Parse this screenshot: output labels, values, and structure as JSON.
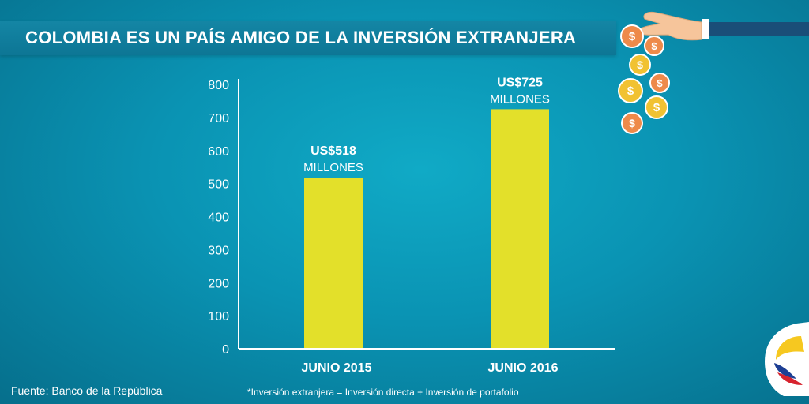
{
  "title": "COLOMBIA ES UN PAÍS AMIGO DE LA INVERSIÓN EXTRANJERA",
  "source": "Fuente: Banco de la República",
  "footnote": "*Inversión extranjera = Inversión directa + Inversión de portafolio",
  "colors": {
    "bar": "#e3e02a",
    "axis": "#ffffff",
    "coin": "#f1c232",
    "coin_alt": "#ee8a4a"
  },
  "icons": {
    "hand": "hand-dropping-coins-icon",
    "coin": "dollar-coin-icon",
    "logo": "colombia-flag-logo-icon"
  },
  "chart_data": {
    "type": "bar",
    "title": "COLOMBIA ES UN PAÍS AMIGO DE LA INVERSIÓN EXTRANJERA",
    "categories": [
      "JUNIO 2015",
      "JUNIO 2016"
    ],
    "values": [
      518,
      725
    ],
    "value_labels": [
      {
        "amount": "US$518",
        "unit": "MILLONES"
      },
      {
        "amount": "US$725",
        "unit": "MILLONES"
      }
    ],
    "yticks": [
      0,
      100,
      200,
      300,
      400,
      500,
      600,
      700,
      800
    ],
    "ylim": [
      0,
      800
    ],
    "xlabel": "",
    "ylabel": "",
    "grid": false
  }
}
